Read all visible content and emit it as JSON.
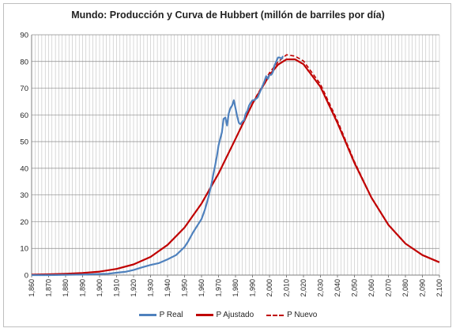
{
  "chart_data": {
    "type": "line",
    "title": "Mundo: Producción y Curva de Hubbert (millón de barriles por día)",
    "xlim": [
      1860,
      2100
    ],
    "ylim": [
      0,
      90
    ],
    "y_ticks": [
      0,
      10,
      20,
      30,
      40,
      50,
      60,
      70,
      80,
      90
    ],
    "x_tick_labels": [
      "1,860",
      "1,870",
      "1,880",
      "1,890",
      "1,900",
      "1,910",
      "1,920",
      "1,930",
      "1,940",
      "1,950",
      "1,960",
      "1,970",
      "1,980",
      "1,990",
      "2,000",
      "2,010",
      "2,020",
      "2,030",
      "2,040",
      "2,050",
      "2,060",
      "2,070",
      "2,080",
      "2,090",
      "2,100"
    ],
    "grid": "vertical major and minor lines, horizontal major lines",
    "legend_position": "bottom",
    "series": [
      {
        "name": "P Real",
        "color": "#4f81bd",
        "style": "solid",
        "x": [
          1860,
          1870,
          1880,
          1890,
          1900,
          1905,
          1910,
          1915,
          1920,
          1925,
          1930,
          1935,
          1940,
          1945,
          1950,
          1952,
          1955,
          1958,
          1960,
          1962,
          1964,
          1966,
          1967,
          1968,
          1969,
          1970,
          1971,
          1972,
          1973,
          1974,
          1975,
          1976,
          1977,
          1978,
          1979,
          1980,
          1981,
          1982,
          1983,
          1984,
          1985,
          1986,
          1987,
          1988,
          1989,
          1990,
          1991,
          1992,
          1993,
          1994,
          1995,
          1996,
          1997,
          1998,
          1999,
          2000,
          2001,
          2002,
          2003,
          2004,
          2005,
          2006,
          2007,
          2008
        ],
        "values": [
          0.0,
          0.0,
          0.1,
          0.2,
          0.4,
          0.5,
          0.9,
          1.2,
          1.9,
          2.9,
          3.8,
          4.5,
          5.9,
          7.5,
          10.5,
          12.5,
          16.0,
          19.0,
          21.0,
          24.5,
          29.0,
          34.5,
          38.0,
          41.0,
          44.5,
          48.5,
          51.0,
          53.5,
          58.5,
          59.0,
          56.0,
          60.5,
          62.5,
          63.5,
          65.5,
          62.5,
          59.5,
          57.0,
          56.5,
          57.5,
          58.0,
          60.5,
          61.5,
          63.5,
          64.5,
          65.5,
          65.5,
          66.0,
          66.5,
          68.0,
          69.5,
          71.0,
          72.5,
          74.5,
          73.5,
          75.0,
          75.0,
          76.0,
          78.5,
          80.0,
          81.5,
          81.5,
          81.0,
          82.0
        ]
      },
      {
        "name": "P Ajustado",
        "color": "#c00000",
        "style": "solid",
        "x": [
          1860,
          1870,
          1880,
          1890,
          1900,
          1910,
          1920,
          1930,
          1940,
          1950,
          1960,
          1970,
          1980,
          1990,
          2000,
          2005,
          2010,
          2015,
          2020,
          2030,
          2040,
          2050,
          2060,
          2070,
          2080,
          2090,
          2100
        ],
        "values": [
          0.2,
          0.3,
          0.5,
          0.8,
          1.3,
          2.3,
          4.0,
          6.8,
          11.3,
          17.8,
          26.8,
          38.0,
          51.0,
          64.2,
          74.9,
          78.8,
          80.8,
          80.8,
          79.0,
          70.5,
          57.0,
          42.0,
          29.0,
          18.8,
          11.8,
          7.5,
          4.8
        ]
      },
      {
        "name": "P Nuevo",
        "color": "#c00000",
        "style": "dashed",
        "x": [
          1990,
          1995,
          2000,
          2005,
          2010,
          2015,
          2020,
          2030,
          2040,
          2050,
          2060,
          2070
        ],
        "values": [
          64.5,
          70.0,
          75.8,
          79.8,
          82.5,
          82.0,
          80.2,
          71.5,
          57.8,
          42.5,
          29.0,
          18.8
        ]
      }
    ]
  }
}
